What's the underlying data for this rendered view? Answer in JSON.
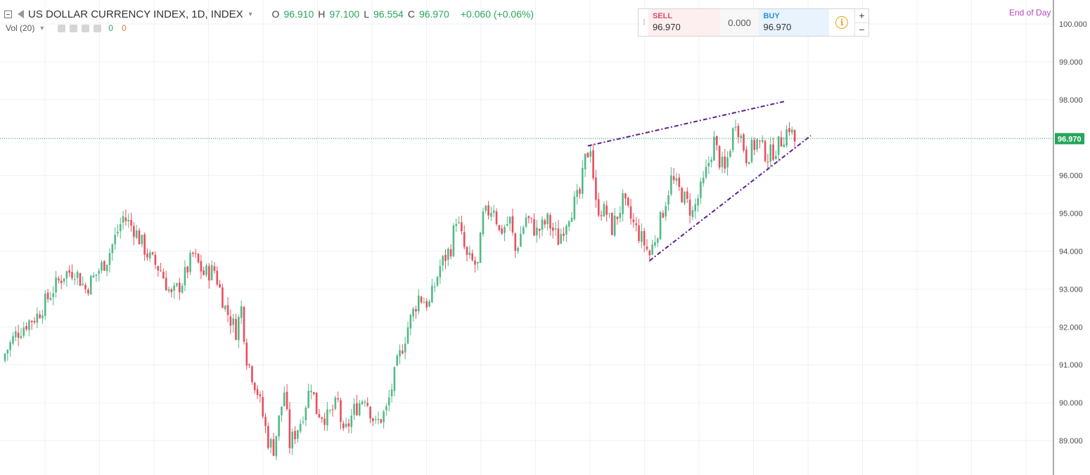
{
  "header": {
    "symbol_title": "US DOLLAR CURRENCY INDEX, 1D, INDEX",
    "open_key": "O",
    "open_val": "96.910",
    "high_key": "H",
    "high_val": "97.100",
    "low_key": "L",
    "low_val": "96.554",
    "close_key": "C",
    "close_val": "96.970",
    "change": "+0.060 (+0.06%)",
    "icons": [
      "collapse-square-icon",
      "flag-icon",
      "dropdown-caret-icon"
    ]
  },
  "volume": {
    "label": "Vol (20)",
    "value_a": "0",
    "value_b": "0",
    "icons": [
      "eye-icon",
      "settings-icon",
      "add-icon",
      "close-icon"
    ]
  },
  "trade": {
    "sell_label": "SELL",
    "sell_price": "96.970",
    "spread": "0.000",
    "buy_label": "BUY",
    "buy_price": "96.970",
    "info_glyph": "i",
    "plus": "+",
    "minus": "−"
  },
  "session_label": "End of Day",
  "colors": {
    "up": "#53b987",
    "down": "#eb4d5c",
    "trendline": "#5d1d8e",
    "last_price": "#26a65b",
    "grid": "#eef2f3"
  },
  "chart_data": {
    "type": "candlestick",
    "title": "US DOLLAR CURRENCY INDEX, 1D, INDEX",
    "y_axis_side": "right",
    "ylim": [
      88.2,
      100.5
    ],
    "y_ticks": [
      "100.000",
      "99.000",
      "98.000",
      "97.000",
      "96.000",
      "95.000",
      "94.000",
      "93.000",
      "92.000",
      "91.000",
      "90.000",
      "89.000"
    ],
    "last_price": 96.97,
    "last_price_label": "96.970",
    "grid": true,
    "close_path": [
      [
        0,
        91.3
      ],
      [
        4,
        91.8
      ],
      [
        8,
        92.1
      ],
      [
        12,
        92.3
      ],
      [
        18,
        93.0
      ],
      [
        22,
        93.4
      ],
      [
        26,
        93.5
      ],
      [
        30,
        93.0
      ],
      [
        34,
        93.4
      ],
      [
        38,
        93.8
      ],
      [
        44,
        94.9
      ],
      [
        48,
        94.6
      ],
      [
        54,
        93.8
      ],
      [
        58,
        93.5
      ],
      [
        62,
        92.8
      ],
      [
        66,
        93.2
      ],
      [
        70,
        93.9
      ],
      [
        74,
        93.4
      ],
      [
        78,
        93.5
      ],
      [
        82,
        92.5
      ],
      [
        86,
        91.9
      ],
      [
        88,
        92.5
      ],
      [
        90,
        91.2
      ],
      [
        94,
        90.3
      ],
      [
        98,
        89.0
      ],
      [
        100,
        88.8
      ],
      [
        104,
        90.3
      ],
      [
        106,
        88.9
      ],
      [
        110,
        89.5
      ],
      [
        114,
        90.5
      ],
      [
        116,
        89.8
      ],
      [
        120,
        89.6
      ],
      [
        124,
        90.0
      ],
      [
        126,
        89.1
      ],
      [
        130,
        89.8
      ],
      [
        134,
        90.2
      ],
      [
        138,
        89.4
      ],
      [
        142,
        89.8
      ],
      [
        146,
        91.0
      ],
      [
        150,
        92.0
      ],
      [
        154,
        92.8
      ],
      [
        158,
        92.6
      ],
      [
        162,
        93.6
      ],
      [
        166,
        94.1
      ],
      [
        168,
        94.9
      ],
      [
        172,
        93.8
      ],
      [
        176,
        93.6
      ],
      [
        178,
        94.9
      ],
      [
        182,
        95.2
      ],
      [
        184,
        94.5
      ],
      [
        188,
        94.8
      ],
      [
        190,
        94.0
      ],
      [
        194,
        94.9
      ],
      [
        198,
        94.5
      ],
      [
        202,
        94.8
      ],
      [
        206,
        94.3
      ],
      [
        210,
        95.0
      ],
      [
        214,
        95.5
      ],
      [
        216,
        96.4
      ],
      [
        218,
        96.8
      ],
      [
        220,
        95.2
      ],
      [
        224,
        95.0
      ],
      [
        226,
        94.6
      ],
      [
        230,
        95.3
      ],
      [
        234,
        94.7
      ],
      [
        238,
        94.2
      ],
      [
        240,
        93.9
      ],
      [
        244,
        94.8
      ],
      [
        248,
        95.9
      ],
      [
        252,
        95.5
      ],
      [
        256,
        95.0
      ],
      [
        260,
        95.8
      ],
      [
        264,
        96.9
      ],
      [
        266,
        96.4
      ],
      [
        268,
        96.1
      ],
      [
        270,
        96.8
      ],
      [
        272,
        97.5
      ],
      [
        276,
        96.5
      ],
      [
        280,
        96.9
      ],
      [
        284,
        96.5
      ],
      [
        288,
        96.8
      ],
      [
        292,
        97.3
      ],
      [
        294,
        96.9
      ]
    ],
    "trendlines": [
      {
        "from": {
          "i": 217,
          "y": 96.78
        },
        "to": {
          "i": 290,
          "y": 97.95
        },
        "style": "dash-dot"
      },
      {
        "from": {
          "i": 240,
          "y": 93.75
        },
        "to": {
          "i": 300,
          "y": 97.05
        },
        "style": "dash-dot"
      }
    ]
  }
}
